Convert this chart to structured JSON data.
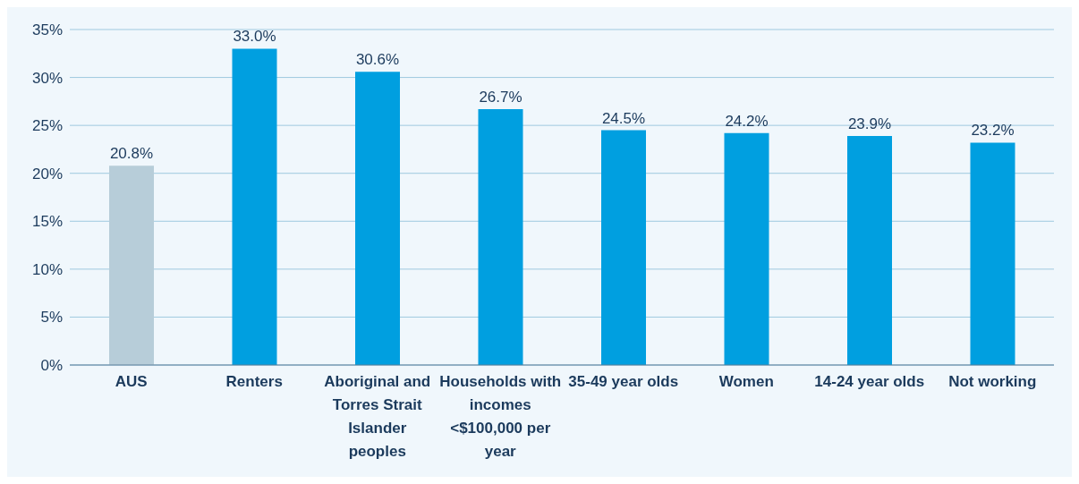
{
  "chart_data": {
    "type": "bar",
    "categories": [
      "AUS",
      "Renters",
      "Aboriginal and Torres Strait Islander peoples",
      "Households with incomes <$100,000 per year",
      "35-49 year olds",
      "Women",
      "14-24 year olds",
      "Not working"
    ],
    "values": [
      20.8,
      33.0,
      30.6,
      26.7,
      24.5,
      24.2,
      23.9,
      23.2
    ],
    "colors": [
      "#b7cdd9",
      "#009fe0",
      "#009fe0",
      "#009fe0",
      "#009fe0",
      "#009fe0",
      "#009fe0",
      "#009fe0"
    ],
    "value_labels": [
      "20.8%",
      "33.0%",
      "30.6%",
      "26.7%",
      "24.5%",
      "24.2%",
      "23.9%",
      "23.2%"
    ],
    "ylim": [
      0,
      35
    ],
    "yticks": [
      {
        "value": 0,
        "label": "0%"
      },
      {
        "value": 5,
        "label": "5%"
      },
      {
        "value": 10,
        "label": "10%"
      },
      {
        "value": 15,
        "label": "15%"
      },
      {
        "value": 20,
        "label": "20%"
      },
      {
        "value": 25,
        "label": "25%"
      },
      {
        "value": 30,
        "label": "30%"
      },
      {
        "value": 35,
        "label": "35%"
      }
    ],
    "grid": "y",
    "legend": false
  }
}
